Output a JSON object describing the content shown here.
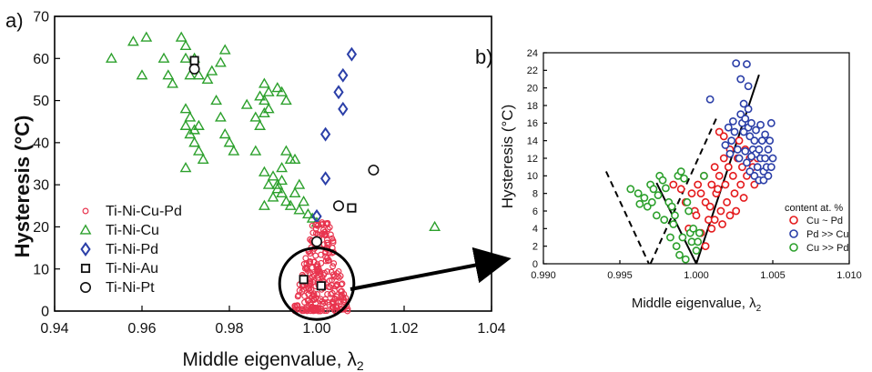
{
  "chart_data": [
    {
      "panel_label": "a)",
      "type": "scatter",
      "xlabel": "Middle eigenvalue, λ",
      "xlabel_sub": "2",
      "ylabel": "Hysteresis (°C)",
      "xlim": [
        0.94,
        1.04
      ],
      "ylim": [
        0,
        70
      ],
      "xticks": [
        "0.94",
        "0.96",
        "0.98",
        "1.00",
        "1.02",
        "1.04"
      ],
      "yticks": [
        "0",
        "10",
        "20",
        "30",
        "40",
        "50",
        "60",
        "70"
      ],
      "legend_position": "bottom-left",
      "series": [
        {
          "name": "Ti-Ni-Cu-Pd",
          "marker": "circle-small",
          "color": "#e8344e",
          "points": []
        },
        {
          "name": "Ti-Ni-Cu",
          "marker": "triangle",
          "color": "#2ca02c",
          "points": [
            [
              0.953,
              60
            ],
            [
              0.958,
              64
            ],
            [
              0.961,
              65
            ],
            [
              0.96,
              56
            ],
            [
              0.965,
              60
            ],
            [
              0.966,
              56
            ],
            [
              0.967,
              54
            ],
            [
              0.969,
              65
            ],
            [
              0.97,
              63
            ],
            [
              0.972,
              60
            ],
            [
              0.973,
              56
            ],
            [
              0.97,
              60
            ],
            [
              0.971,
              56
            ],
            [
              0.975,
              55
            ],
            [
              0.976,
              57
            ],
            [
              0.978,
              59
            ],
            [
              0.979,
              62
            ],
            [
              0.977,
              50
            ],
            [
              0.97,
              48
            ],
            [
              0.971,
              46
            ],
            [
              0.97,
              44
            ],
            [
              0.972,
              43
            ],
            [
              0.973,
              44
            ],
            [
              0.971,
              42
            ],
            [
              0.972,
              40
            ],
            [
              0.973,
              38
            ],
            [
              0.974,
              36
            ],
            [
              0.97,
              34
            ],
            [
              0.978,
              46
            ],
            [
              0.979,
              42
            ],
            [
              0.98,
              40
            ],
            [
              0.981,
              38
            ],
            [
              0.984,
              49
            ],
            [
              0.987,
              51
            ],
            [
              0.988,
              54
            ],
            [
              0.989,
              52
            ],
            [
              0.988,
              50
            ],
            [
              0.989,
              48
            ],
            [
              0.991,
              53
            ],
            [
              0.992,
              52
            ],
            [
              0.993,
              50
            ],
            [
              0.986,
              46
            ],
            [
              0.987,
              44
            ],
            [
              0.988,
              47
            ],
            [
              0.986,
              38
            ],
            [
              0.988,
              33
            ],
            [
              0.989,
              30
            ],
            [
              0.99,
              32
            ],
            [
              0.991,
              30
            ],
            [
              0.992,
              34
            ],
            [
              0.993,
              38
            ],
            [
              0.994,
              36
            ],
            [
              0.995,
              36
            ],
            [
              0.992,
              28
            ],
            [
              0.993,
              26
            ],
            [
              0.994,
              25
            ],
            [
              0.995,
              28
            ],
            [
              0.996,
              30
            ],
            [
              0.988,
              25
            ],
            [
              0.99,
              27
            ],
            [
              0.991,
              29
            ],
            [
              0.992,
              31
            ],
            [
              0.996,
              24
            ],
            [
              0.997,
              26
            ],
            [
              0.998,
              23
            ],
            [
              0.999,
              22
            ],
            [
              1.0,
              21
            ],
            [
              1.027,
              20
            ]
          ]
        },
        {
          "name": "Ti-Ni-Pd",
          "marker": "diamond",
          "color": "#2b3fa8",
          "points": [
            [
              1.008,
              61
            ],
            [
              1.006,
              56
            ],
            [
              1.005,
              52
            ],
            [
              1.006,
              48
            ],
            [
              1.002,
              42
            ],
            [
              1.002,
              31.5
            ],
            [
              1.0,
              22.5
            ]
          ]
        },
        {
          "name": "Ti-Ni-Au",
          "marker": "square",
          "color": "#111111",
          "points": [
            [
              0.972,
              59.5
            ],
            [
              1.008,
              24.5
            ],
            [
              0.997,
              7.5
            ],
            [
              1.001,
              6
            ]
          ]
        },
        {
          "name": "Ti-Ni-Pt",
          "marker": "circle",
          "color": "#111111",
          "points": [
            [
              0.972,
              57.5
            ],
            [
              1.013,
              33.5
            ],
            [
              1.005,
              25
            ],
            [
              1.0,
              16.5
            ]
          ]
        }
      ],
      "highlight": {
        "center": [
          1.0,
          6.5
        ],
        "radius_x": 0.0085,
        "radius_y": 8.5
      }
    },
    {
      "panel_label": "b)",
      "type": "scatter",
      "xlabel": "Middle eigenvalue, λ",
      "xlabel_sub": "2",
      "ylabel": "Hysteresis (°C)",
      "xlim": [
        0.99,
        1.01
      ],
      "ylim": [
        0,
        24
      ],
      "xticks": [
        "0.990",
        "0.995",
        "1.000",
        "1.005",
        "1.010"
      ],
      "yticks": [
        "0",
        "2",
        "4",
        "6",
        "8",
        "10",
        "12",
        "14",
        "16",
        "18",
        "20",
        "22",
        "24"
      ],
      "legend_title": "content at. %",
      "legend_position": "bottom-right",
      "series": [
        {
          "name": "Cu ~ Pd",
          "marker": "circle",
          "color": "#e41a1c",
          "points": [
            [
              0.9985,
              9
            ],
            [
              0.999,
              8.5
            ],
            [
              0.9993,
              7
            ],
            [
              0.9997,
              8
            ],
            [
              0.9999,
              6
            ],
            [
              1.0001,
              9
            ],
            [
              1.0003,
              8
            ],
            [
              1.0005,
              10
            ],
            [
              1.0006,
              7
            ],
            [
              1.0008,
              5
            ],
            [
              1.001,
              9
            ],
            [
              1.0012,
              11
            ],
            [
              1.0013,
              8
            ],
            [
              1.0015,
              10
            ],
            [
              1.0016,
              6
            ],
            [
              1.0018,
              12
            ],
            [
              1.0019,
              9
            ],
            [
              1.002,
              7
            ],
            [
              1.0021,
              11
            ],
            [
              1.0022,
              13
            ],
            [
              1.0024,
              10
            ],
            [
              1.0025,
              8
            ],
            [
              1.0027,
              12
            ],
            [
              1.0028,
              14
            ],
            [
              1.0029,
              9
            ],
            [
              1.003,
              11
            ],
            [
              1.0032,
              13
            ],
            [
              1.0033,
              10
            ],
            [
              1.0035,
              12
            ],
            [
              1.0037,
              11
            ],
            [
              1.0038,
              9
            ],
            [
              1.004,
              12
            ],
            [
              1.0015,
              15
            ],
            [
              1.0018,
              14.5
            ],
            [
              1.0012,
              5
            ],
            [
              1.001,
              4
            ],
            [
              1.0006,
              2
            ],
            [
              1.0003,
              3.5
            ],
            [
              1.0,
              5.5
            ],
            [
              0.9995,
              4
            ],
            [
              1.0009,
              6.5
            ],
            [
              1.0014,
              8.5
            ],
            [
              1.0017,
              4.5
            ],
            [
              1.0022,
              5.5
            ],
            [
              1.0026,
              6
            ],
            [
              1.0031,
              7.5
            ]
          ]
        },
        {
          "name": "Pd >> Cu",
          "marker": "circle",
          "color": "#2b3fa8",
          "points": [
            [
              1.0009,
              18.7
            ],
            [
              1.0026,
              22.8
            ],
            [
              1.0033,
              22.7
            ],
            [
              1.0029,
              21
            ],
            [
              1.0034,
              20.2
            ],
            [
              1.0031,
              18.2
            ],
            [
              1.0029,
              17
            ],
            [
              1.003,
              16
            ],
            [
              1.0031,
              15
            ],
            [
              1.0032,
              16.5
            ],
            [
              1.0034,
              15.5
            ],
            [
              1.0035,
              14.5
            ],
            [
              1.0036,
              16
            ],
            [
              1.0037,
              13
            ],
            [
              1.0038,
              14
            ],
            [
              1.0039,
              12.5
            ],
            [
              1.004,
              11
            ],
            [
              1.0041,
              13
            ],
            [
              1.0042,
              12
            ],
            [
              1.0043,
              14
            ],
            [
              1.0044,
              10.5
            ],
            [
              1.0045,
              12
            ],
            [
              1.0046,
              11
            ],
            [
              1.0047,
              13
            ],
            [
              1.0048,
              14
            ],
            [
              1.0049,
              16
            ],
            [
              1.005,
              12
            ],
            [
              1.0025,
              15
            ],
            [
              1.0023,
              14
            ],
            [
              1.0021,
              15.5
            ],
            [
              1.0024,
              16.2
            ],
            [
              1.0027,
              13
            ],
            [
              1.0028,
              12
            ],
            [
              1.0033,
              11.5
            ],
            [
              1.0035,
              10.5
            ],
            [
              1.0038,
              10
            ],
            [
              1.0041,
              9.5
            ],
            [
              1.0044,
              9.5
            ],
            [
              1.0047,
              10
            ],
            [
              1.0049,
              11
            ],
            [
              1.0019,
              13.5
            ],
            [
              1.0022,
              12.5
            ],
            [
              1.0032,
              12.8
            ],
            [
              1.0036,
              12.2
            ],
            [
              1.0039,
              15.2
            ],
            [
              1.0042,
              15.8
            ],
            [
              1.0045,
              14.7
            ],
            [
              1.0034,
              17.6
            ]
          ]
        },
        {
          "name": "Cu >> Pd",
          "marker": "circle",
          "color": "#2ca02c",
          "points": [
            [
              0.9957,
              8.5
            ],
            [
              0.9962,
              8
            ],
            [
              0.9966,
              7.5
            ],
            [
              0.997,
              9
            ],
            [
              0.9972,
              8.5
            ],
            [
              0.9975,
              7.8
            ],
            [
              0.9976,
              10
            ],
            [
              0.9978,
              9.5
            ],
            [
              0.998,
              8.6
            ],
            [
              0.9982,
              7
            ],
            [
              0.9984,
              6.5
            ],
            [
              0.9986,
              5.5
            ],
            [
              0.9988,
              10
            ],
            [
              0.999,
              10.5
            ],
            [
              0.9992,
              9.7
            ],
            [
              0.9994,
              7
            ],
            [
              0.9995,
              6
            ],
            [
              0.9996,
              3.5
            ],
            [
              0.9997,
              2.5
            ],
            [
              0.9998,
              4
            ],
            [
              1.0,
              1.5
            ],
            [
              1.0001,
              2.5
            ],
            [
              1.0002,
              3.5
            ],
            [
              1.0005,
              10
            ],
            [
              0.9983,
              3
            ],
            [
              0.9987,
              2
            ],
            [
              0.9989,
              1
            ],
            [
              0.9963,
              6.8
            ],
            [
              0.9968,
              6.5
            ],
            [
              0.9974,
              5.5
            ],
            [
              0.9979,
              5
            ],
            [
              0.9985,
              4.5
            ],
            [
              0.9991,
              3
            ],
            [
              0.9993,
              0.5
            ],
            [
              0.9971,
              7
            ]
          ]
        }
      ],
      "fit_lines": [
        {
          "style": "dashed",
          "from": [
            0.9941,
            10.5
          ],
          "to": [
            0.9969,
            0
          ]
        },
        {
          "style": "dashed",
          "from": [
            0.997,
            0
          ],
          "to": [
            1.0013,
            16.5
          ]
        },
        {
          "style": "solid",
          "from": [
            0.9974,
            9.2
          ],
          "to": [
            1.0,
            0
          ]
        },
        {
          "style": "solid",
          "from": [
            1.0,
            0
          ],
          "to": [
            1.0041,
            21.5
          ]
        }
      ]
    }
  ]
}
